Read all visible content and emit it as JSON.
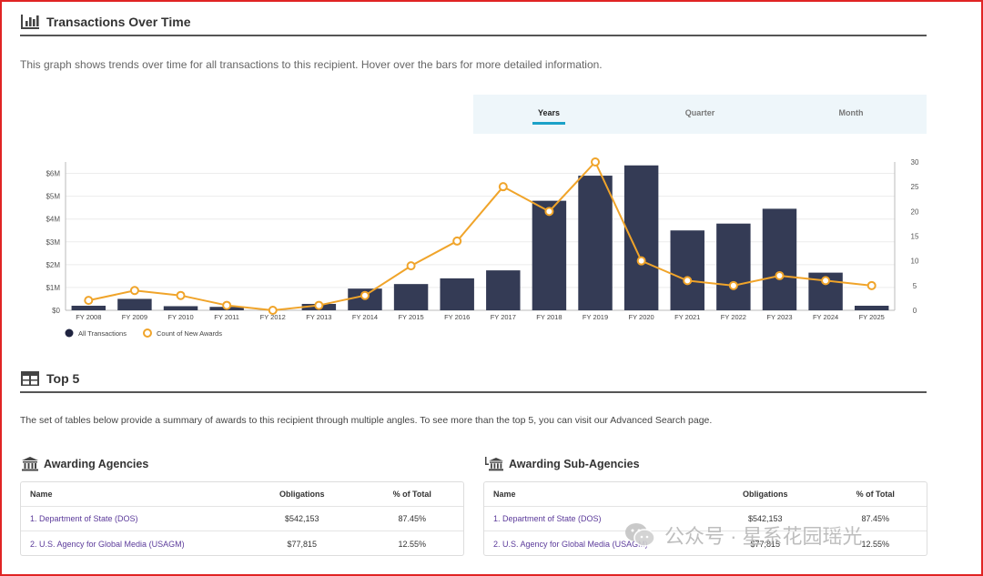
{
  "transactions": {
    "title": "Transactions Over Time",
    "description": "This graph shows trends over time for all transactions to this recipient. Hover over the bars for more detailed information.",
    "tabs": [
      "Years",
      "Quarter",
      "Month"
    ],
    "active_tab": "Years"
  },
  "chart_data": {
    "type": "bar",
    "categories": [
      "FY 2008",
      "FY 2009",
      "FY 2010",
      "FY 2011",
      "FY 2012",
      "FY 2013",
      "FY 2014",
      "FY 2015",
      "FY 2016",
      "FY 2017",
      "FY 2018",
      "FY 2019",
      "FY 2020",
      "FY 2021",
      "FY 2022",
      "FY 2023",
      "FY 2024",
      "FY 2025"
    ],
    "series": [
      {
        "name": "All Transactions",
        "type": "bar",
        "axis": "left",
        "color": "#343b55",
        "values": [
          0.2,
          0.5,
          0.18,
          0.15,
          0.0,
          0.28,
          0.95,
          1.15,
          1.4,
          1.75,
          4.8,
          5.9,
          6.35,
          3.5,
          3.8,
          4.45,
          1.65,
          0.2
        ]
      },
      {
        "name": "Count of New Awards",
        "type": "line",
        "axis": "right",
        "color": "#f0a42a",
        "values": [
          2,
          4,
          3,
          1,
          0,
          1,
          3,
          9,
          14,
          25,
          20,
          30,
          10,
          6,
          5,
          7,
          6,
          5
        ]
      }
    ],
    "y_left_ticks": [
      "$0",
      "$1M",
      "$2M",
      "$3M",
      "$4M",
      "$5M",
      "$6M"
    ],
    "y_left_range": [
      0,
      6.5
    ],
    "y_right_ticks": [
      "0",
      "5",
      "10",
      "15",
      "20",
      "25",
      "30"
    ],
    "y_right_range": [
      0,
      30
    ],
    "legend_position": "bottom-left",
    "grid": true
  },
  "top5": {
    "title": "Top 5",
    "description": "The set of tables below provide a summary of awards to this recipient through multiple angles. To see more than the top 5, you can visit our Advanced Search page.",
    "agencies": {
      "title": "Awarding Agencies",
      "headers": [
        "Name",
        "Obligations",
        "% of Total"
      ],
      "rows": [
        [
          "1. Department of State (DOS)",
          "$542,153",
          "87.45%"
        ],
        [
          "2. U.S. Agency for Global Media (USAGM)",
          "$77,815",
          "12.55%"
        ]
      ]
    },
    "sub_agencies": {
      "title": "Awarding Sub-Agencies",
      "headers": [
        "Name",
        "Obligations",
        "% of Total"
      ],
      "rows": [
        [
          "1. Department of State (DOS)",
          "$542,153",
          "87.45%"
        ],
        [
          "2. U.S. Agency for Global Media (USAGM)",
          "$77,815",
          "12.55%"
        ]
      ]
    }
  },
  "watermark": {
    "text": "公众号 · 星系花园瑶光"
  }
}
